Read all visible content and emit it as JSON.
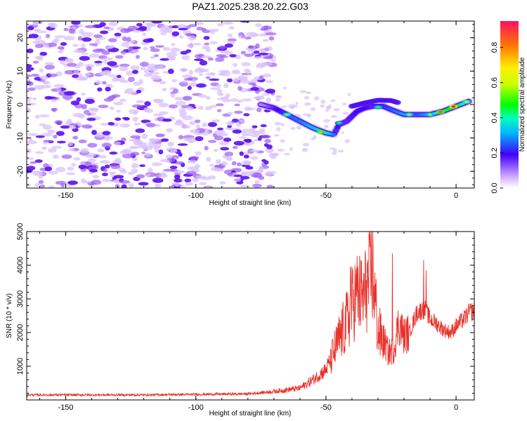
{
  "chart_data": [
    {
      "type": "heatmap",
      "title": "PAZ1.2025.238.20.22.G03",
      "xlabel": "Height of straight line (km)",
      "ylabel": "Frequency (Hz)",
      "xlim": [
        -165,
        7
      ],
      "ylim": [
        -25,
        25
      ],
      "xticks": [
        -150,
        -100,
        -50,
        0
      ],
      "yticks": [
        -20,
        -10,
        0,
        10,
        20
      ],
      "colorbar": {
        "label": "Normalized spectral amplitude",
        "range": [
          0,
          0.95
        ],
        "ticks": [
          0.0,
          0.2,
          0.4,
          0.6,
          0.8
        ]
      },
      "signal_track": {
        "x": [
          -75,
          -70,
          -65,
          -60,
          -55,
          -50,
          -47,
          -45,
          -42,
          -38,
          -35,
          -32,
          -28,
          -25,
          -20,
          -15,
          -10,
          -5,
          0,
          5
        ],
        "freq": [
          0,
          -1,
          -3,
          -5,
          -7,
          -8.5,
          -9,
          -6,
          -5,
          -2,
          -1,
          -0.5,
          -0.5,
          -1.5,
          -3,
          -3,
          -3,
          -2,
          -0.5,
          1
        ],
        "amplitude": [
          0.15,
          0.3,
          0.45,
          0.5,
          0.6,
          0.7,
          0.5,
          0.3,
          0.3,
          0.35,
          0.35,
          0.3,
          0.4,
          0.45,
          0.55,
          0.45,
          0.6,
          0.8,
          0.95,
          0.5
        ]
      }
    },
    {
      "type": "line",
      "xlabel": "Height of straight line (km)",
      "ylabel": "SNR (10 * v/v)",
      "xlim": [
        -165,
        7
      ],
      "ylim": [
        0,
        5000
      ],
      "xticks": [
        -150,
        -100,
        -50,
        0
      ],
      "yticks": [
        1000,
        2000,
        3000,
        4000,
        5000
      ],
      "color": "#e8312a",
      "envelope": {
        "x": [
          -165,
          -120,
          -80,
          -70,
          -60,
          -55,
          -50,
          -47,
          -45,
          -42,
          -40,
          -38,
          -36,
          -34,
          -32,
          -30,
          -28,
          -26,
          -24,
          -22,
          -20,
          -18,
          -15,
          -12,
          -10,
          -8,
          -5,
          -2,
          0,
          3,
          5,
          7
        ],
        "y": [
          150,
          150,
          180,
          250,
          350,
          600,
          900,
          1400,
          1800,
          2300,
          2800,
          3200,
          3000,
          3400,
          3800,
          2000,
          1800,
          1400,
          1500,
          2300,
          1900,
          2000,
          2600,
          2700,
          2400,
          2300,
          2100,
          2000,
          2200,
          2400,
          2600,
          2650
        ]
      },
      "peaks": [
        {
          "x": -40.5,
          "y": 3950
        },
        {
          "x": -38.5,
          "y": 3700
        },
        {
          "x": -34.5,
          "y": 3550
        },
        {
          "x": -32.5,
          "y": 5000
        },
        {
          "x": -24.5,
          "y": 4350
        },
        {
          "x": -12.5,
          "y": 4150
        },
        {
          "x": -11.5,
          "y": 3850
        }
      ]
    }
  ]
}
